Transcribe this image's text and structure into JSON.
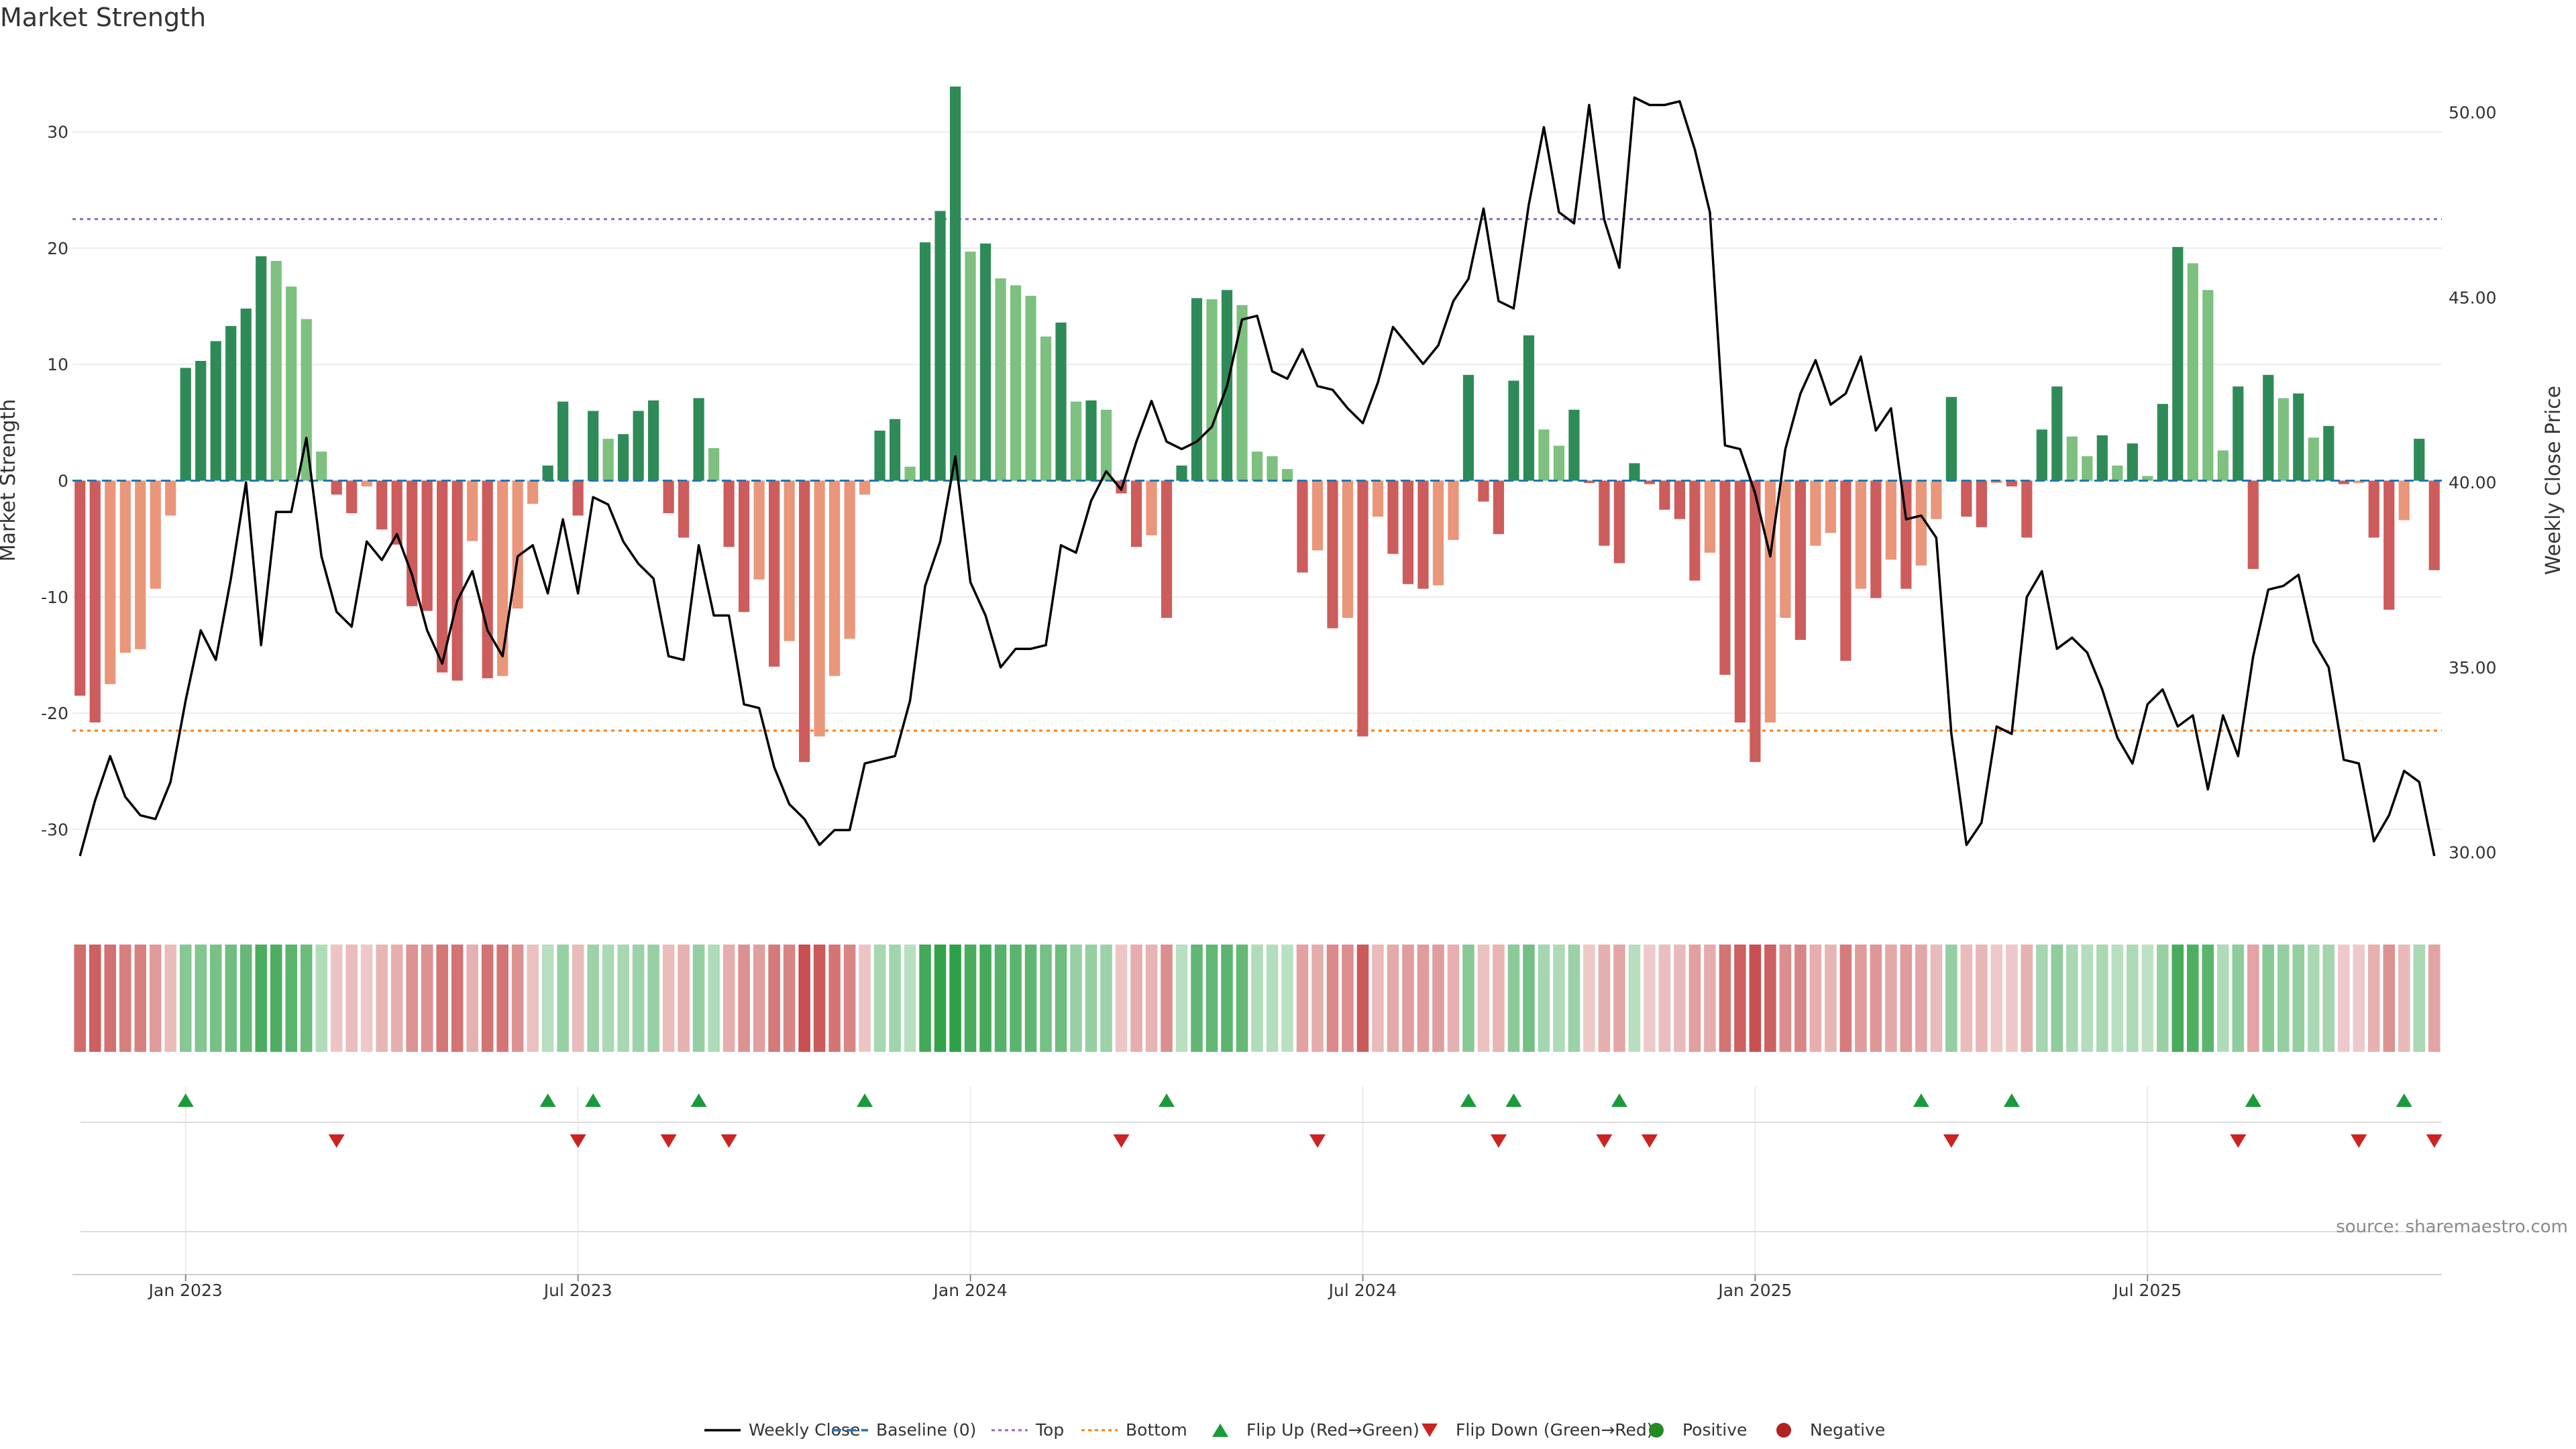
{
  "title": "Market Strength",
  "source": "source: sharemaestro.com",
  "colors": {
    "strong_green": "#2e8b57",
    "light_green": "#7dc07f",
    "strong_red": "#cd5c5c",
    "light_red": "#e9967a",
    "price_line": "#000000",
    "baseline": "#1f77b4",
    "top_line": "#9467bd",
    "bottom_line": "#ff7f0e",
    "flip_up": "#1a9a3a",
    "flip_down": "#cc2222",
    "positive": "#228b22",
    "negative": "#b22222",
    "grid": "#ebebeb"
  },
  "chart_data": {
    "type": "bar",
    "title": "Market Strength",
    "ylabel": "Market Strength",
    "ylabel_right": "Weekly Close Price",
    "ylim": [
      -36,
      37
    ],
    "ylim_right": [
      28.6,
      52.0
    ],
    "yticks": [
      -30,
      -20,
      -10,
      0,
      10,
      20,
      30
    ],
    "yticks_right": [
      "30.00",
      "35.00",
      "40.00",
      "45.00",
      "50.00"
    ],
    "xtick_labels": [
      {
        "label": "Jan 2023",
        "week": 7
      },
      {
        "label": "Jul 2023",
        "week": 33
      },
      {
        "label": "Jan 2024",
        "week": 59
      },
      {
        "label": "Jul 2024",
        "week": 85
      },
      {
        "label": "Jan 2025",
        "week": 111
      },
      {
        "label": "Jul 2025",
        "week": 137
      }
    ],
    "grid": true,
    "legend_position": "bottom",
    "top_threshold": 22.5,
    "bottom_threshold": -21.5,
    "strength": [
      -18.5,
      -20.8,
      -17.5,
      -14.8,
      -14.5,
      -9.3,
      -3.0,
      9.7,
      10.3,
      12.0,
      13.3,
      14.8,
      19.3,
      18.9,
      16.7,
      13.9,
      2.5,
      -1.2,
      -2.8,
      -0.5,
      -4.2,
      -5.5,
      -10.8,
      -11.2,
      -16.5,
      -17.2,
      -5.2,
      -17.0,
      -16.8,
      -11.0,
      -2.0,
      1.3,
      6.8,
      -3.0,
      6.0,
      3.6,
      4.0,
      6.0,
      6.9,
      -2.8,
      -4.9,
      7.1,
      2.8,
      -5.7,
      -11.3,
      -8.5,
      -16.0,
      -13.8,
      -24.2,
      -22.0,
      -16.8,
      -13.6,
      -1.2,
      4.3,
      5.3,
      1.2,
      20.5,
      23.2,
      33.9,
      19.7,
      20.4,
      17.4,
      16.8,
      15.9,
      12.4,
      13.6,
      6.8,
      6.9,
      6.1,
      -1.1,
      -5.7,
      -4.7,
      -11.8,
      1.3,
      15.7,
      15.6,
      16.4,
      15.1,
      2.5,
      2.1,
      1.0,
      -7.9,
      -6.0,
      -12.7,
      -11.8,
      -22.0,
      -3.1,
      -6.3,
      -8.9,
      -9.3,
      -9.0,
      -5.1,
      9.1,
      -1.8,
      -4.6,
      8.6,
      12.5,
      4.4,
      3.0,
      6.1,
      -0.2,
      -5.6,
      -7.1,
      1.5,
      -0.3,
      -2.5,
      -3.3,
      -8.6,
      -6.2,
      -16.7,
      -20.8,
      -24.2,
      -20.8,
      -11.8,
      -13.7,
      -5.6,
      -4.5,
      -15.5,
      -9.3,
      -10.1,
      -6.8,
      -9.3,
      -7.3,
      -3.3,
      7.2,
      -3.1,
      -4.0,
      -0.2,
      -0.5,
      -4.9,
      4.4,
      8.1,
      3.8,
      2.1,
      3.9,
      1.3,
      3.2,
      0.4,
      6.6,
      20.1,
      18.7,
      16.4,
      2.6,
      8.1,
      -7.6,
      9.1,
      7.1,
      7.5,
      3.7,
      4.7,
      -0.3,
      -0.2,
      -4.9,
      -11.1,
      -3.4,
      3.6,
      -7.7
    ],
    "weekly_close": [
      29.9,
      31.4,
      32.6,
      31.5,
      31.0,
      30.9,
      31.9,
      34.1,
      36.0,
      35.2,
      37.4,
      40.0,
      35.6,
      39.2,
      39.2,
      41.2,
      38.0,
      36.5,
      36.1,
      38.4,
      37.9,
      38.6,
      37.5,
      36.0,
      35.1,
      36.8,
      37.6,
      36.0,
      35.3,
      38.0,
      38.3,
      37.0,
      39.0,
      37.0,
      39.6,
      39.4,
      38.4,
      37.8,
      37.4,
      35.3,
      35.2,
      38.3,
      36.4,
      36.4,
      34.0,
      33.9,
      32.3,
      31.3,
      30.9,
      30.2,
      30.6,
      30.6,
      32.4,
      32.5,
      32.6,
      34.1,
      37.2,
      38.4,
      40.7,
      37.3,
      36.4,
      35.0,
      35.5,
      35.5,
      35.6,
      38.3,
      38.1,
      39.5,
      40.3,
      39.8,
      41.1,
      42.2,
      41.1,
      40.9,
      41.1,
      41.5,
      42.6,
      44.4,
      44.5,
      43.0,
      42.8,
      43.6,
      42.6,
      42.5,
      42.0,
      41.6,
      42.7,
      44.2,
      43.7,
      43.2,
      43.7,
      44.9,
      45.5,
      47.4,
      44.9,
      44.7,
      47.5,
      49.6,
      47.3,
      47.0,
      50.2,
      47.1,
      45.8,
      50.4,
      50.2,
      50.2,
      50.3,
      49.0,
      47.3,
      41.0,
      40.9,
      39.7,
      38.0,
      40.9,
      42.4,
      43.3,
      42.1,
      42.4,
      43.4,
      41.4,
      42.0,
      39.0,
      39.1,
      38.5,
      33.2,
      30.2,
      30.8,
      33.4,
      33.2,
      36.9,
      37.6,
      35.5,
      35.8,
      35.4,
      34.4,
      33.1,
      32.4,
      34.0,
      34.4,
      33.4,
      33.7,
      31.7,
      33.7,
      32.6,
      35.3,
      37.1,
      37.2,
      37.5,
      35.7,
      35.0,
      32.5,
      32.4,
      30.3,
      31.0,
      32.2,
      31.9,
      29.9
    ],
    "flip_up_weeks": [
      7,
      31,
      34,
      41,
      52,
      72,
      92,
      95,
      102,
      122,
      128,
      144,
      154
    ],
    "flip_down_weeks": [
      17,
      33,
      39,
      43,
      69,
      82,
      94,
      101,
      104,
      124,
      143,
      151,
      156
    ]
  },
  "legend": [
    {
      "label": "Weekly Close",
      "icon": "solid-line-icon"
    },
    {
      "label": "Baseline (0)",
      "icon": "dashed-line-icon"
    },
    {
      "label": "Top",
      "icon": "dotted-line-icon"
    },
    {
      "label": "Bottom",
      "icon": "dotted-line-icon"
    },
    {
      "label": "Flip Up (Red→Green)",
      "icon": "triangle-up-icon"
    },
    {
      "label": "Flip Down (Green→Red)",
      "icon": "triangle-down-icon"
    },
    {
      "label": "Positive",
      "icon": "circle-icon"
    },
    {
      "label": "Negative",
      "icon": "circle-icon"
    }
  ]
}
